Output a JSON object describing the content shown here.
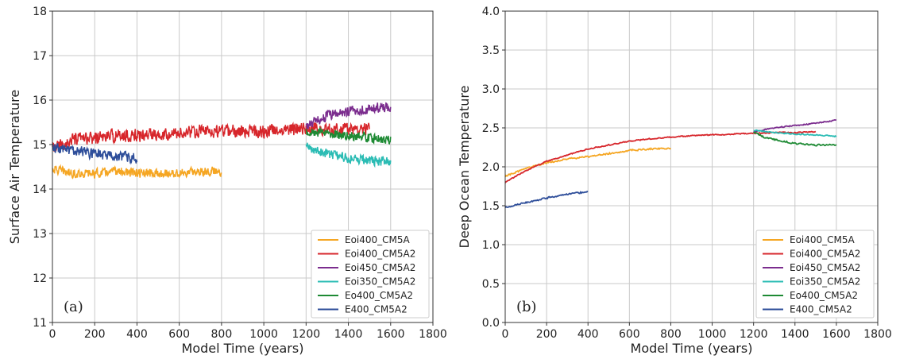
{
  "chart_data": [
    {
      "type": "line",
      "panel_label": "(a)",
      "xlabel": "Model Time (years)",
      "ylabel": "Surface Air Temperature",
      "xlim": [
        0,
        1800
      ],
      "ylim": [
        11,
        18
      ],
      "xticks": [
        0,
        200,
        400,
        600,
        800,
        1000,
        1200,
        1400,
        1600,
        1800
      ],
      "yticks": [
        11,
        12,
        13,
        14,
        15,
        16,
        17,
        18
      ],
      "grid": true,
      "legend_position": "bottom-right",
      "series": [
        {
          "name": "Eoi400_CM5A",
          "color": "#f5a623",
          "x": [
            0,
            100,
            200,
            300,
            400,
            500,
            600,
            700,
            800
          ],
          "y": [
            14.45,
            14.35,
            14.35,
            14.4,
            14.35,
            14.35,
            14.35,
            14.4,
            14.4
          ],
          "noise": 0.12
        },
        {
          "name": "Eoi400_CM5A2",
          "color": "#d7262b",
          "x": [
            0,
            100,
            200,
            300,
            400,
            500,
            600,
            700,
            800,
            900,
            1000,
            1100,
            1200,
            1300,
            1400,
            1500
          ],
          "y": [
            14.9,
            15.1,
            15.15,
            15.2,
            15.2,
            15.25,
            15.25,
            15.3,
            15.3,
            15.3,
            15.3,
            15.35,
            15.35,
            15.35,
            15.35,
            15.35
          ],
          "noise": 0.17
        },
        {
          "name": "Eoi450_CM5A2",
          "color": "#7b2d8e",
          "x": [
            1200,
            1300,
            1400,
            1500,
            1600
          ],
          "y": [
            15.4,
            15.65,
            15.75,
            15.8,
            15.85
          ],
          "noise": 0.14
        },
        {
          "name": "Eoi350_CM5A2",
          "color": "#2bbcb4",
          "x": [
            1200,
            1300,
            1400,
            1500,
            1600
          ],
          "y": [
            14.95,
            14.8,
            14.7,
            14.65,
            14.6
          ],
          "noise": 0.13
        },
        {
          "name": "Eo400_CM5A2",
          "color": "#1e8a34",
          "x": [
            1200,
            1300,
            1400,
            1500,
            1600
          ],
          "y": [
            15.3,
            15.25,
            15.2,
            15.15,
            15.1
          ],
          "noise": 0.12
        },
        {
          "name": "E400_CM5A2",
          "color": "#2e4e9a",
          "x": [
            0,
            100,
            200,
            300,
            400
          ],
          "y": [
            14.95,
            14.85,
            14.8,
            14.75,
            14.7
          ],
          "noise": 0.14
        }
      ]
    },
    {
      "type": "line",
      "panel_label": "(b)",
      "xlabel": "Model Time (years)",
      "ylabel": "Deep Ocean Temperature",
      "xlim": [
        0,
        1800
      ],
      "ylim": [
        0.0,
        4.0
      ],
      "xticks": [
        0,
        200,
        400,
        600,
        800,
        1000,
        1200,
        1400,
        1600,
        1800
      ],
      "yticks": [
        0.0,
        0.5,
        1.0,
        1.5,
        2.0,
        2.5,
        3.0,
        3.5,
        4.0
      ],
      "grid": true,
      "legend_position": "bottom-right",
      "series": [
        {
          "name": "Eoi400_CM5A",
          "color": "#f5a623",
          "x": [
            0,
            100,
            200,
            300,
            400,
            500,
            600,
            700,
            800
          ],
          "y": [
            1.88,
            1.98,
            2.05,
            2.1,
            2.13,
            2.17,
            2.21,
            2.23,
            2.24
          ],
          "noise": 0.012
        },
        {
          "name": "Eoi400_CM5A2",
          "color": "#d7262b",
          "x": [
            0,
            100,
            200,
            300,
            400,
            500,
            600,
            700,
            800,
            900,
            1000,
            1100,
            1200,
            1300,
            1400,
            1500
          ],
          "y": [
            1.8,
            1.95,
            2.07,
            2.15,
            2.23,
            2.28,
            2.33,
            2.36,
            2.38,
            2.4,
            2.41,
            2.42,
            2.43,
            2.44,
            2.44,
            2.45
          ],
          "noise": 0.008
        },
        {
          "name": "Eoi450_CM5A2",
          "color": "#7b2d8e",
          "x": [
            1200,
            1300,
            1400,
            1500,
            1600
          ],
          "y": [
            2.45,
            2.5,
            2.53,
            2.56,
            2.6
          ],
          "noise": 0.008
        },
        {
          "name": "Eoi350_CM5A2",
          "color": "#2bbcb4",
          "x": [
            1200,
            1300,
            1400,
            1500,
            1600
          ],
          "y": [
            2.47,
            2.44,
            2.42,
            2.41,
            2.39
          ],
          "noise": 0.008
        },
        {
          "name": "Eo400_CM5A2",
          "color": "#1e8a34",
          "x": [
            1200,
            1250,
            1300,
            1400,
            1500,
            1600
          ],
          "y": [
            2.45,
            2.38,
            2.35,
            2.3,
            2.28,
            2.28
          ],
          "noise": 0.012
        },
        {
          "name": "E400_CM5A2",
          "color": "#2e4e9a",
          "x": [
            0,
            100,
            200,
            300,
            400
          ],
          "y": [
            1.48,
            1.54,
            1.6,
            1.65,
            1.68
          ],
          "noise": 0.012
        }
      ]
    }
  ]
}
